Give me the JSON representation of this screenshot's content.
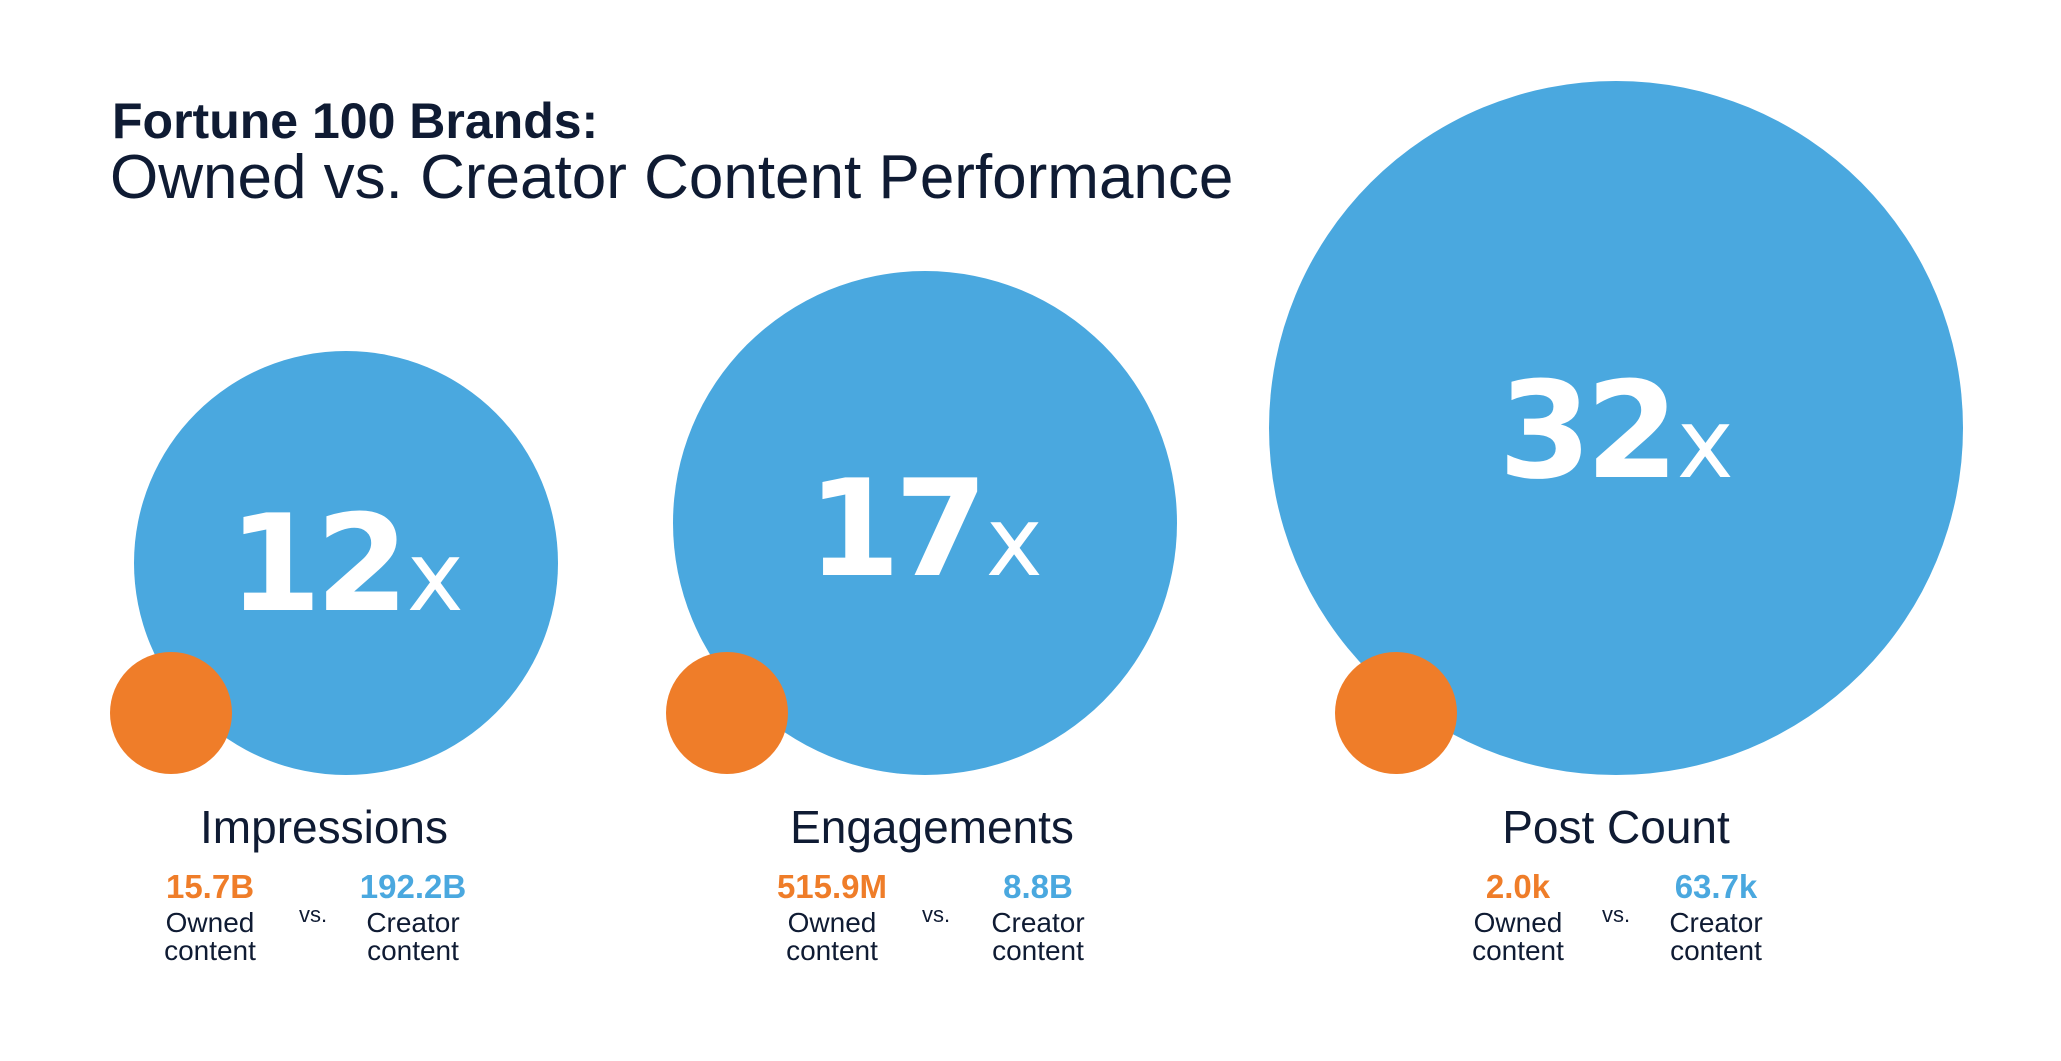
{
  "chart_data": {
    "type": "bubble-comparison",
    "title": "Fortune 100 Brands:",
    "subtitle": "Owned vs. Creator Content Performance",
    "colors": {
      "creator": "#4aa8df",
      "owned": "#ef7d29",
      "text": "#0f1b33"
    },
    "vs_label": "vs.",
    "metrics": [
      {
        "label": "Impressions",
        "multiplier": 12,
        "multiplier_number": "12",
        "multiplier_suffix": "x",
        "owned_value": "15.7B",
        "owned_label_line1": "Owned",
        "owned_label_line2": "content",
        "creator_value": "192.2B",
        "creator_label_line1": "Creator",
        "creator_label_line2": "content"
      },
      {
        "label": "Engagements",
        "multiplier": 17,
        "multiplier_number": "17",
        "multiplier_suffix": "x",
        "owned_value": "515.9M",
        "owned_label_line1": "Owned",
        "owned_label_line2": "content",
        "creator_value": "8.8B",
        "creator_label_line1": "Creator",
        "creator_label_line2": "content"
      },
      {
        "label": "Post Count",
        "multiplier": 32,
        "multiplier_number": "32",
        "multiplier_suffix": "x",
        "owned_value": "2.0k",
        "owned_label_line1": "Owned",
        "owned_label_line2": "content",
        "creator_value": "63.7k",
        "creator_label_line1": "Creator",
        "creator_label_line2": "content"
      }
    ]
  }
}
